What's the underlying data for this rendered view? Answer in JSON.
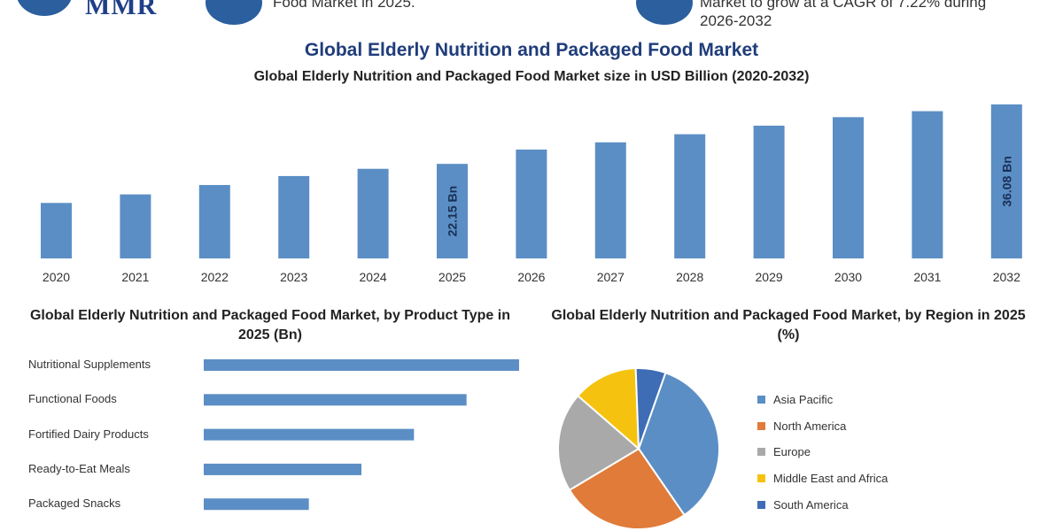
{
  "header": {
    "logo_text": "MMR",
    "stat_left": "Food Market in 2025.",
    "stat_right_line1": "Market to grow at a CAGR of 7.22% during",
    "stat_right_line2": "2026-2032"
  },
  "colors": {
    "bar": "#5b8ec5",
    "title": "#1f3d7a"
  },
  "chart_data": [
    {
      "type": "bar",
      "title": "Global Elderly Nutrition and Packaged Food Market size in USD Billion (2020-2032)",
      "categories": [
        "2020",
        "2021",
        "2022",
        "2023",
        "2024",
        "2025",
        "2026",
        "2027",
        "2028",
        "2029",
        "2030",
        "2031",
        "2032"
      ],
      "values": [
        13.0,
        15.0,
        17.2,
        19.3,
        21.0,
        22.15,
        25.5,
        27.2,
        29.1,
        31.1,
        33.1,
        34.5,
        36.08
      ],
      "data_labels": [
        {
          "index": 5,
          "text": "22.15 Bn"
        },
        {
          "index": 12,
          "text": "36.08 Bn"
        }
      ],
      "ylim": [
        0,
        36.08
      ]
    },
    {
      "type": "bar",
      "orientation": "horizontal",
      "title": "Global Elderly Nutrition and Packaged Food Market, by Product Type in 2025 (Bn)",
      "categories": [
        "Nutritional Supplements",
        "Functional Foods",
        "Fortified Dairy Products",
        "Ready-to-Eat Meals",
        "Packaged Snacks"
      ],
      "values": [
        6.0,
        5.0,
        4.0,
        3.0,
        2.0
      ],
      "xlim": [
        0,
        6.0
      ]
    },
    {
      "type": "pie",
      "title": "Global Elderly Nutrition and Packaged Food Market, by Region in 2025 (%)",
      "categories": [
        "Asia Pacific",
        "North America",
        "Europe",
        "Middle East and Africa",
        "South America"
      ],
      "values": [
        35,
        26,
        20,
        13,
        6
      ],
      "colors": [
        "#5b8ec5",
        "#e07b39",
        "#a9a9a9",
        "#f5c30f",
        "#3e6db5"
      ],
      "legend": "right"
    }
  ]
}
